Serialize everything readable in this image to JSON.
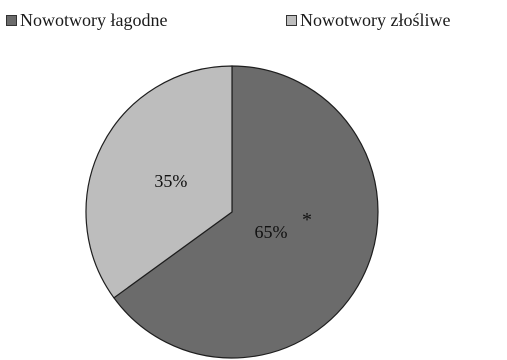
{
  "chart_data": {
    "type": "pie",
    "categories": [
      "Nowotwory łagodne",
      "Nowotwory złośliwe"
    ],
    "values": [
      65,
      35
    ],
    "data_labels": [
      "65%",
      "35%"
    ],
    "annotation": "*",
    "colors": [
      "#6b6b6b",
      "#bdbdbd"
    ],
    "legend_position": "top"
  }
}
